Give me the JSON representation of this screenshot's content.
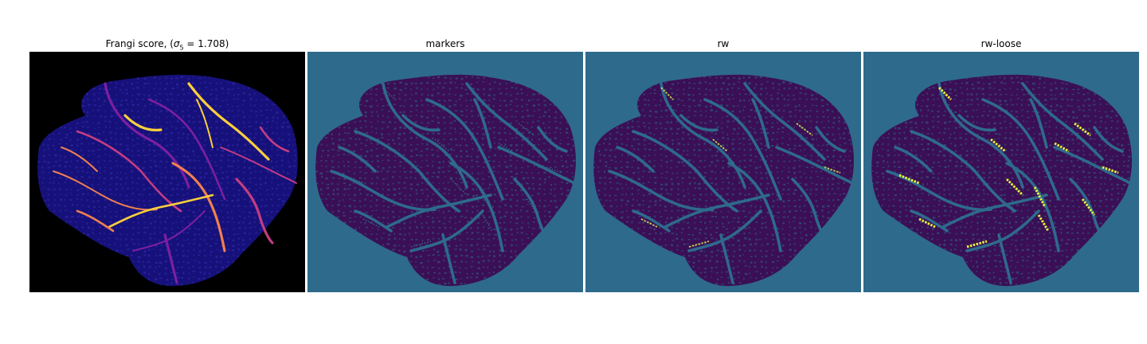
{
  "figure": {
    "panels": [
      {
        "id": "frangi",
        "title_prefix": "Frangi score, (",
        "title_symbol": "σ",
        "title_subscript": "5",
        "title_suffix": " = 1.708)",
        "colormap": "plasma",
        "background_color": "#000000",
        "tissue_color": "#16117a",
        "vessel_colors": [
          "#7c1fa0",
          "#c43d83",
          "#f07f4f",
          "#fccf3c"
        ]
      },
      {
        "id": "markers",
        "title": "markers",
        "colormap": "viridis",
        "background_color": "#2e6a8c",
        "tissue_color": "#3b0f55",
        "highlight_color": "#2c7f8a"
      },
      {
        "id": "rw",
        "title": "rw",
        "colormap": "viridis",
        "background_color": "#2e6a8c",
        "tissue_color": "#3b0f55",
        "highlight_color": "#d4e84a"
      },
      {
        "id": "rw-loose",
        "title": "rw-loose",
        "colormap": "viridis",
        "background_color": "#2e6a8c",
        "tissue_color": "#3b0f55",
        "highlight_color": "#e7f33a"
      }
    ]
  }
}
